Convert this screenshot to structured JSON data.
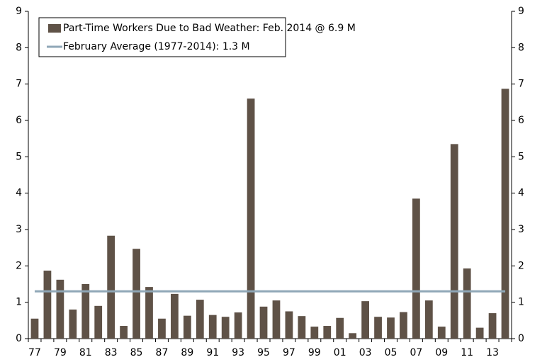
{
  "chart_data": {
    "type": "bar",
    "categories": [
      "77",
      null,
      "79",
      null,
      "81",
      null,
      "83",
      null,
      "85",
      null,
      "87",
      null,
      "89",
      null,
      "91",
      null,
      "93",
      null,
      "95",
      null,
      "97",
      null,
      "99",
      null,
      "01",
      null,
      "03",
      null,
      "05",
      null,
      "07",
      null,
      "09",
      null,
      "11",
      null,
      "13",
      null
    ],
    "series": [
      {
        "name": "Part-Time Workers Due to Bad Weather: Feb. 2014 @ 6.9 M",
        "type": "bar",
        "color": "#5f5247",
        "values": [
          0.55,
          1.87,
          1.62,
          0.8,
          1.5,
          0.9,
          2.83,
          0.35,
          2.47,
          1.42,
          0.55,
          1.23,
          0.63,
          1.07,
          0.65,
          0.6,
          0.72,
          6.6,
          0.88,
          1.05,
          0.75,
          0.62,
          0.33,
          0.35,
          0.57,
          0.15,
          1.03,
          0.6,
          0.58,
          0.73,
          3.85,
          1.05,
          0.33,
          5.35,
          1.93,
          0.3,
          0.7,
          6.87
        ]
      },
      {
        "name": "February Average (1977-2014): 1.3 M",
        "type": "line",
        "color": "#8fa7b7",
        "values": [
          1.3,
          1.3,
          1.3,
          1.3,
          1.3,
          1.3,
          1.3,
          1.3,
          1.3,
          1.3,
          1.3,
          1.3,
          1.3,
          1.3,
          1.3,
          1.3,
          1.3,
          1.3,
          1.3,
          1.3,
          1.3,
          1.3,
          1.3,
          1.3,
          1.3,
          1.3,
          1.3,
          1.3,
          1.3,
          1.3,
          1.3,
          1.3,
          1.3,
          1.3,
          1.3,
          1.3,
          1.3,
          1.3
        ]
      }
    ],
    "ylim": [
      0,
      9
    ],
    "yticks": [
      0,
      1,
      2,
      3,
      4,
      5,
      6,
      7,
      8,
      9
    ],
    "y2lim": [
      0,
      9
    ],
    "y2ticks": [
      0,
      1,
      2,
      3,
      4,
      5,
      6,
      7,
      8,
      9
    ],
    "grid": false,
    "legend": "top-left"
  }
}
